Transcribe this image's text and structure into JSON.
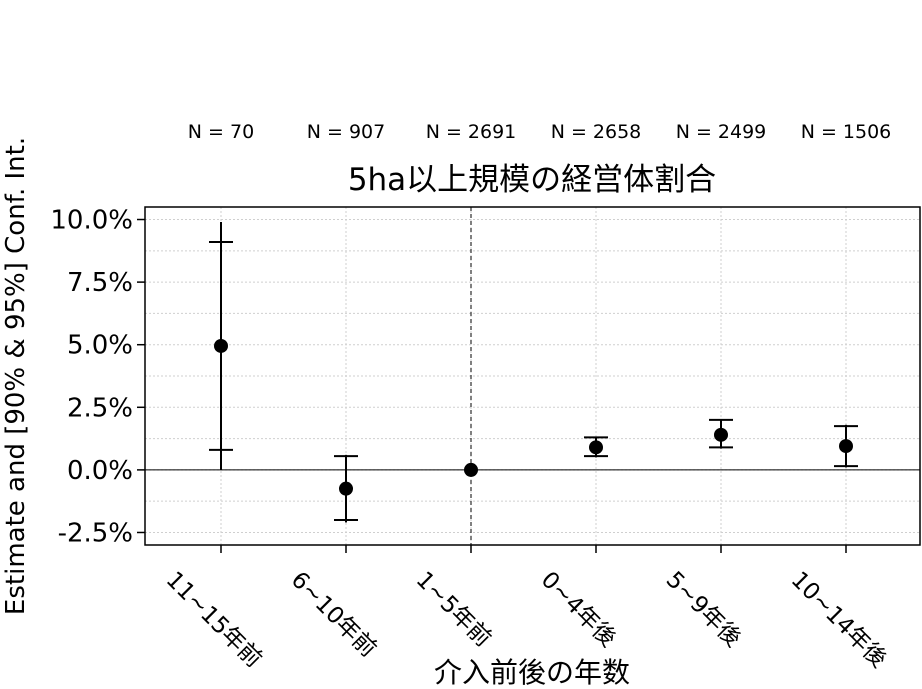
{
  "chart_data": {
    "type": "scatter",
    "title": "5ha以上規模の経営体割合",
    "xlabel": "介入前後の年数",
    "ylabel": "Estimate and [90% & 95%] Conf. Int.",
    "categories": [
      "11~15年前",
      "6~10年前",
      "1~5年前",
      "0~4年後",
      "5~9年後",
      "10~14年後"
    ],
    "n_labels": [
      "N = 70",
      "N = 907",
      "N = 2691",
      "N = 2658",
      "N = 2499",
      "N = 1506"
    ],
    "estimate": [
      4.95,
      -0.75,
      0.0,
      0.9,
      1.4,
      0.95
    ],
    "ci95": [
      [
        0.0,
        9.9
      ],
      [
        -2.1,
        0.6
      ],
      [
        0.0,
        0.0
      ],
      [
        0.5,
        1.3
      ],
      [
        0.85,
        2.0
      ],
      [
        0.1,
        1.8
      ]
    ],
    "ci90": [
      [
        0.8,
        9.1
      ],
      [
        -2.0,
        0.55
      ],
      [
        0.0,
        0.0
      ],
      [
        0.55,
        1.3
      ],
      [
        0.9,
        2.0
      ],
      [
        0.15,
        1.75
      ]
    ],
    "ylim": [
      -3.0,
      10.5
    ],
    "yticks": [
      -2.5,
      0.0,
      2.5,
      5.0,
      7.5,
      10.0
    ],
    "ytick_labels": [
      "-2.5%",
      "0.0%",
      "2.5%",
      "5.0%",
      "7.5%",
      "10.0%"
    ],
    "reference_line_y": 0.0,
    "reference_vline_category": "1~5年前",
    "grid": true
  }
}
